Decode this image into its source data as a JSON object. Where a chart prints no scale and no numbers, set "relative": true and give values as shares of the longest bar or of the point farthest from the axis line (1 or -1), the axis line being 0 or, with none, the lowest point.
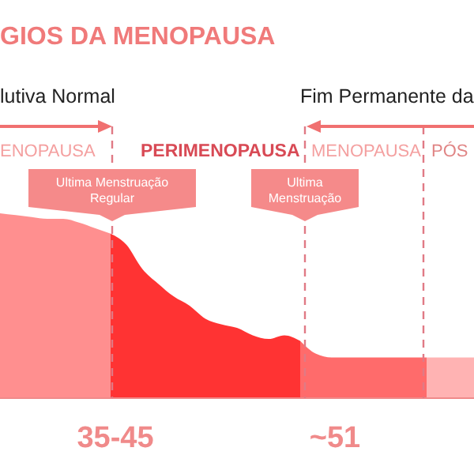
{
  "chart_data": {
    "type": "area",
    "title": "GIOS DA MENOPAUSA",
    "relative": true,
    "categories": [
      null,
      null,
      null,
      null,
      null,
      null,
      null,
      null,
      null,
      null,
      null,
      null,
      null,
      null,
      null,
      null,
      null,
      null,
      null,
      null,
      null,
      null,
      null,
      null,
      null,
      null,
      null,
      null,
      null,
      null,
      null
    ],
    "series": [
      {
        "color": "#ff8f8f",
        "values": [
          1,
          0.99,
          0.98,
          0.97,
          0.97,
          0.95,
          0.92,
          0.89,
          null,
          null,
          null,
          null,
          null,
          null,
          null,
          null,
          null,
          null,
          null,
          null,
          null,
          null,
          null,
          null,
          null,
          null,
          null,
          null,
          null,
          null,
          null
        ]
      },
      {
        "color": "#ff3333",
        "values": [
          null,
          null,
          null,
          null,
          null,
          null,
          null,
          0.89,
          0.83,
          0.7,
          0.62,
          0.55,
          0.5,
          0.43,
          0.4,
          0.38,
          0.34,
          0.32,
          0.34,
          0.31,
          null,
          null,
          null,
          null,
          null,
          null,
          null,
          null,
          null,
          null,
          null
        ]
      },
      {
        "color": "#ff6b6b",
        "values": [
          null,
          null,
          null,
          null,
          null,
          null,
          null,
          null,
          null,
          null,
          null,
          null,
          null,
          null,
          null,
          null,
          null,
          null,
          null,
          0.31,
          0.24,
          0.22,
          0.22,
          0.22,
          0.22,
          0.22,
          0.22,
          0.22,
          null,
          null,
          null
        ]
      },
      {
        "color": "#ffb3b3",
        "values": [
          null,
          null,
          null,
          null,
          null,
          null,
          null,
          null,
          null,
          null,
          null,
          null,
          null,
          null,
          null,
          null,
          null,
          null,
          null,
          null,
          null,
          null,
          null,
          null,
          null,
          null,
          null,
          0.22,
          0.22,
          0.22,
          0.22
        ]
      }
    ],
    "annotations": [
      "lutiva Normal",
      "Fim Permanente da",
      "ENOPAUSA",
      "PERIMENOPAUSA",
      "MENOPAUSA",
      "PÓS",
      "Ultima Menstruação Regular",
      "Ultima Menstruação",
      "35-45",
      "~51"
    ]
  }
}
